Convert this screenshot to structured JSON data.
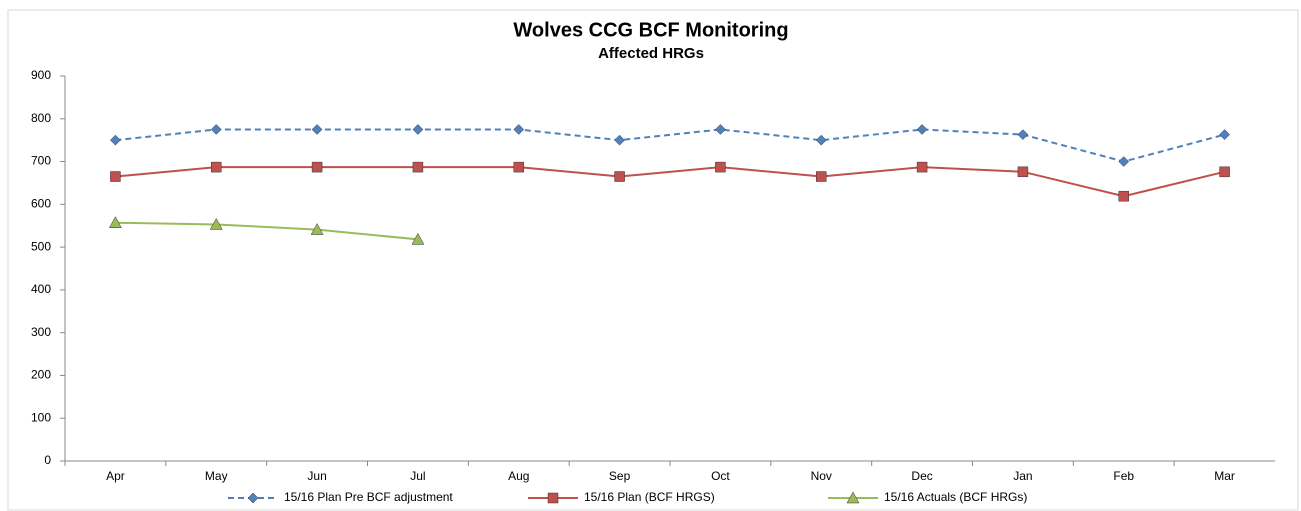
{
  "chart_data": {
    "type": "line",
    "title": "Wolves CCG BCF Monitoring",
    "subtitle": "Affected HRGs",
    "categories": [
      "Apr",
      "May",
      "Jun",
      "Jul",
      "Aug",
      "Sep",
      "Oct",
      "Nov",
      "Dec",
      "Jan",
      "Feb",
      "Mar"
    ],
    "series": [
      {
        "name": "15/16 Plan Pre BCF adjustment",
        "color": "#4f81bd",
        "dash": true,
        "marker": "diamond",
        "values": [
          750,
          775,
          775,
          775,
          775,
          750,
          775,
          750,
          775,
          763,
          700,
          763
        ]
      },
      {
        "name": "15/16 Plan (BCF HRGS)",
        "color": "#c0504d",
        "dash": false,
        "marker": "square",
        "values": [
          665,
          687,
          687,
          687,
          687,
          665,
          687,
          665,
          687,
          676,
          619,
          676
        ]
      },
      {
        "name": "15/16 Actuals (BCF HRGs)",
        "color": "#9bbb59",
        "dash": false,
        "marker": "triangle",
        "values": [
          557,
          553,
          541,
          518,
          null,
          null,
          null,
          null,
          null,
          null,
          null,
          null
        ]
      }
    ],
    "ylim": [
      0,
      900
    ],
    "yticks": [
      0,
      100,
      200,
      300,
      400,
      500,
      600,
      700,
      800,
      900
    ],
    "grid": false,
    "legend": "bottom"
  }
}
